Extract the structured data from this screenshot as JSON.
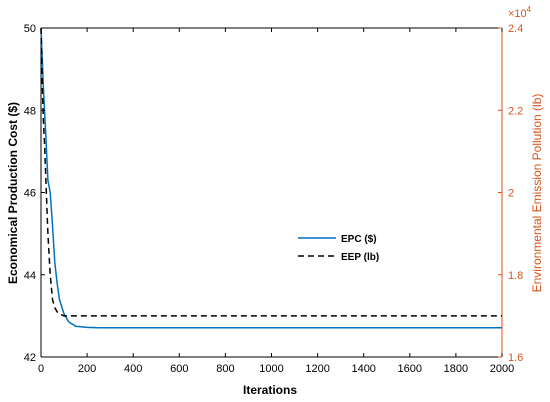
{
  "chart_data": {
    "type": "line",
    "xlabel": "Iterations",
    "ylabel_left": "Economical Production Cost ($)",
    "ylabel_right": "Environmental Emission Pollution (lb)",
    "right_exponent_label": "×10",
    "right_exponent_power": "4",
    "xlim": [
      0,
      2000
    ],
    "ylim_left": [
      42,
      50
    ],
    "ylim_right": [
      1.6,
      2.4
    ],
    "x_ticks": [
      "0",
      "200",
      "400",
      "600",
      "800",
      "1000",
      "1200",
      "1400",
      "1600",
      "1800",
      "2000"
    ],
    "y_left_ticks": [
      "42",
      "44",
      "46",
      "48",
      "50"
    ],
    "y_right_ticks": [
      "1.6",
      "1.8",
      "2",
      "2.2",
      "2.4"
    ],
    "grid": false,
    "legend_position": "center-right",
    "series": [
      {
        "name": "EPC ($)",
        "axis": "left",
        "color": "#0072bd",
        "dash": "solid",
        "x": [
          0,
          5,
          10,
          15,
          20,
          30,
          40,
          50,
          60,
          70,
          80,
          100,
          120,
          150,
          200,
          250,
          300,
          500,
          1000,
          1500,
          2000
        ],
        "y": [
          50,
          49.3,
          48.6,
          48.0,
          47.5,
          46.3,
          46.0,
          45.2,
          44.3,
          43.8,
          43.4,
          43.05,
          42.85,
          42.75,
          42.72,
          42.71,
          42.71,
          42.71,
          42.71,
          42.71,
          42.71
        ]
      },
      {
        "name": "EEP (lb)",
        "axis": "right",
        "color": "#000000",
        "dash": "dashed",
        "x": [
          0,
          5,
          10,
          15,
          20,
          25,
          30,
          40,
          50,
          60,
          70,
          80,
          100,
          120,
          150,
          200,
          300,
          500,
          1000,
          1500,
          2000
        ],
        "y": [
          2.4,
          2.27,
          2.18,
          2.12,
          2.05,
          1.97,
          1.9,
          1.8,
          1.74,
          1.72,
          1.71,
          1.705,
          1.7,
          1.7,
          1.7,
          1.7,
          1.7,
          1.7,
          1.7,
          1.7,
          1.7
        ]
      }
    ]
  }
}
